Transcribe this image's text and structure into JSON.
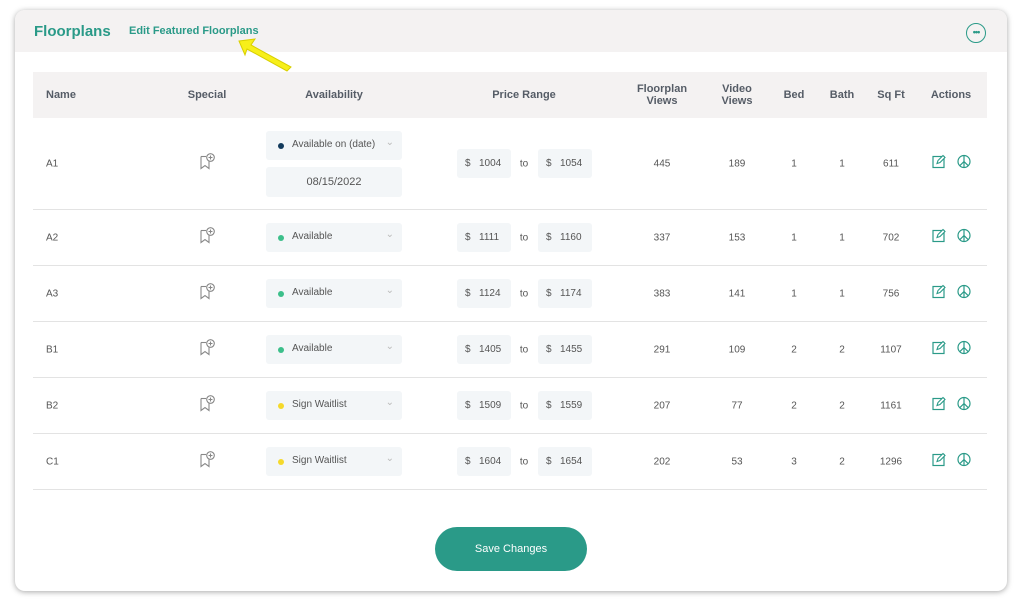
{
  "header": {
    "title": "Floorplans",
    "edit_link": "Edit Featured Floorplans",
    "more_icon": "more-options-icon"
  },
  "columns": [
    "Name",
    "Special",
    "Availability",
    "Price Range",
    "Floorplan Views",
    "Video Views",
    "Bed",
    "Bath",
    "Sq Ft",
    "Actions"
  ],
  "colors": {
    "accent": "#2a9a88",
    "available": "#3cbf8a",
    "waitlist": "#f5d92b",
    "available_on_date": "#123a5c"
  },
  "price_separator": "to",
  "currency": "$",
  "rows": [
    {
      "name": "A1",
      "availability": "Available on (date)",
      "status": "available_on_date",
      "date": "08/15/2022",
      "price_min": "1004",
      "price_max": "1054",
      "floorplan_views": "445",
      "video_views": "189",
      "bed": "1",
      "bath": "1",
      "sqft": "611"
    },
    {
      "name": "A2",
      "availability": "Available",
      "status": "available",
      "price_min": "1111",
      "price_max": "1160",
      "floorplan_views": "337",
      "video_views": "153",
      "bed": "1",
      "bath": "1",
      "sqft": "702"
    },
    {
      "name": "A3",
      "availability": "Available",
      "status": "available",
      "price_min": "1124",
      "price_max": "1174",
      "floorplan_views": "383",
      "video_views": "141",
      "bed": "1",
      "bath": "1",
      "sqft": "756"
    },
    {
      "name": "B1",
      "availability": "Available",
      "status": "available",
      "price_min": "1405",
      "price_max": "1455",
      "floorplan_views": "291",
      "video_views": "109",
      "bed": "2",
      "bath": "2",
      "sqft": "1107"
    },
    {
      "name": "B2",
      "availability": "Sign Waitlist",
      "status": "waitlist",
      "price_min": "1509",
      "price_max": "1559",
      "floorplan_views": "207",
      "video_views": "77",
      "bed": "2",
      "bath": "2",
      "sqft": "1161"
    },
    {
      "name": "C1",
      "availability": "Sign Waitlist",
      "status": "waitlist",
      "price_min": "1604",
      "price_max": "1654",
      "floorplan_views": "202",
      "video_views": "53",
      "bed": "3",
      "bath": "2",
      "sqft": "1296"
    }
  ],
  "save_label": "Save Changes"
}
